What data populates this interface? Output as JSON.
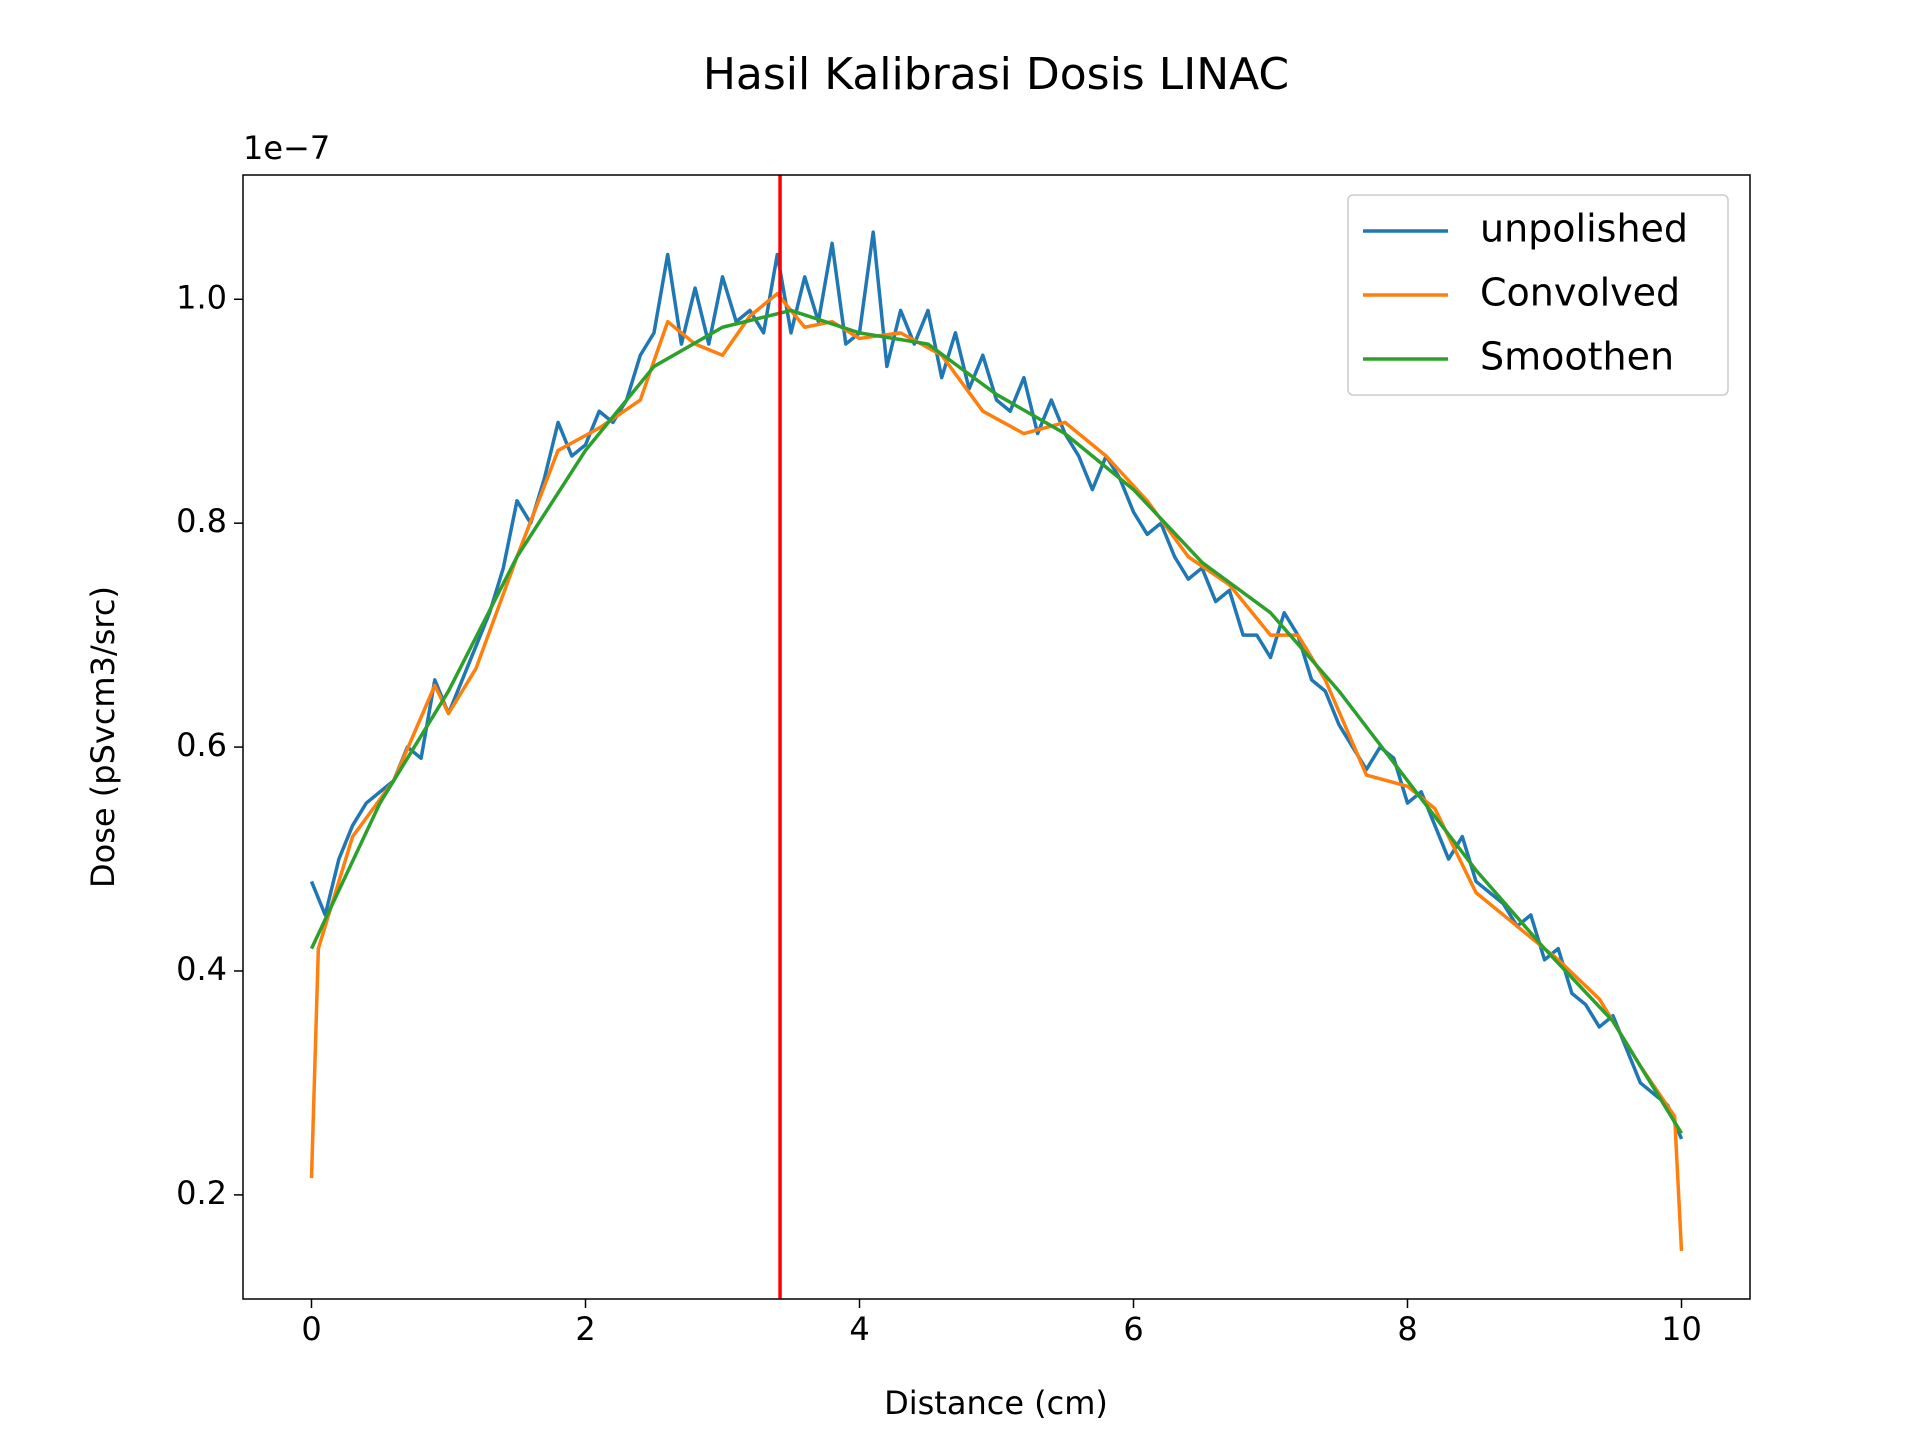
{
  "chart_data": {
    "type": "line",
    "title": "Hasil Kalibrasi Dosis LINAC",
    "x_label": "Distance (cm)",
    "y_label": "Dose (pSvcm3/src)",
    "y_offset_label": "1e−7",
    "xlim": [
      -0.5,
      10.5
    ],
    "ylim": [
      0.107,
      1.111
    ],
    "xticks": [
      0,
      2,
      4,
      6,
      8,
      10
    ],
    "yticks": [
      0.2,
      0.4,
      0.6,
      0.8,
      {
        "value": 1,
        "label": "1.0"
      }
    ],
    "legend": "upper right",
    "series": [
      {
        "name": "unpolished",
        "color": "#1f77b4",
        "x": [
          0,
          0.1,
          0.2,
          0.3,
          0.4,
          0.5,
          0.6,
          0.7,
          0.8,
          0.9,
          1,
          1.1,
          1.2,
          1.3,
          1.4,
          1.5,
          1.6,
          1.7,
          1.8,
          1.9,
          2,
          2.1,
          2.2,
          2.3,
          2.4,
          2.5,
          2.6,
          2.7,
          2.8,
          2.9,
          3,
          3.1,
          3.2,
          3.3,
          3.4,
          3.5,
          3.6,
          3.7,
          3.8,
          3.9,
          4,
          4.1,
          4.2,
          4.3,
          4.4,
          4.5,
          4.6,
          4.7,
          4.8,
          4.9,
          5,
          5.1,
          5.2,
          5.3,
          5.4,
          5.5,
          5.6,
          5.7,
          5.8,
          5.9,
          6,
          6.1,
          6.2,
          6.3,
          6.4,
          6.5,
          6.6,
          6.7,
          6.8,
          6.9,
          7,
          7.1,
          7.2,
          7.3,
          7.4,
          7.5,
          7.6,
          7.7,
          7.8,
          7.9,
          8,
          8.1,
          8.2,
          8.3,
          8.4,
          8.5,
          8.6,
          8.7,
          8.8,
          8.9,
          9,
          9.1,
          9.2,
          9.3,
          9.4,
          9.5,
          9.6,
          9.7,
          9.8,
          9.9,
          10
        ],
        "values": [
          0.48,
          0.45,
          0.5,
          0.53,
          0.55,
          0.56,
          0.57,
          0.6,
          0.59,
          0.66,
          0.63,
          0.66,
          0.69,
          0.72,
          0.76,
          0.82,
          0.8,
          0.84,
          0.89,
          0.86,
          0.87,
          0.9,
          0.89,
          0.91,
          0.95,
          0.97,
          1.04,
          0.96,
          1.01,
          0.96,
          1.02,
          0.98,
          0.99,
          0.97,
          1.04,
          0.97,
          1.02,
          0.98,
          1.05,
          0.96,
          0.97,
          1.06,
          0.94,
          0.99,
          0.96,
          0.99,
          0.93,
          0.97,
          0.92,
          0.95,
          0.91,
          0.9,
          0.93,
          0.88,
          0.91,
          0.88,
          0.86,
          0.83,
          0.86,
          0.84,
          0.81,
          0.79,
          0.8,
          0.77,
          0.75,
          0.76,
          0.73,
          0.74,
          0.7,
          0.7,
          0.68,
          0.72,
          0.7,
          0.66,
          0.65,
          0.62,
          0.6,
          0.58,
          0.6,
          0.59,
          0.55,
          0.56,
          0.53,
          0.5,
          0.52,
          0.48,
          0.47,
          0.46,
          0.44,
          0.45,
          0.41,
          0.42,
          0.38,
          0.37,
          0.35,
          0.36,
          0.33,
          0.3,
          0.29,
          0.28,
          0.25
        ]
      },
      {
        "name": "Convolved",
        "color": "#ff7f0e",
        "x": [
          0,
          0.05,
          0.3,
          0.6,
          0.9,
          1,
          1.2,
          1.5,
          1.8,
          2.1,
          2.4,
          2.6,
          2.8,
          3,
          3.2,
          3.4,
          3.6,
          3.8,
          4,
          4.3,
          4.6,
          4.9,
          5.2,
          5.5,
          5.8,
          6.1,
          6.4,
          6.7,
          7,
          7.2,
          7.4,
          7.7,
          8,
          8.2,
          8.5,
          8.8,
          9.1,
          9.4,
          9.7,
          9.95,
          10
        ],
        "values": [
          0.215,
          0.42,
          0.52,
          0.57,
          0.655,
          0.63,
          0.67,
          0.77,
          0.865,
          0.885,
          0.91,
          0.98,
          0.96,
          0.95,
          0.985,
          1.005,
          0.975,
          0.98,
          0.965,
          0.97,
          0.95,
          0.9,
          0.88,
          0.89,
          0.86,
          0.82,
          0.77,
          0.745,
          0.7,
          0.7,
          0.66,
          0.575,
          0.565,
          0.545,
          0.47,
          0.44,
          0.41,
          0.375,
          0.315,
          0.27,
          0.15
        ]
      },
      {
        "name": "Smoothen",
        "color": "#2ca02c",
        "x": [
          0,
          0.5,
          1,
          1.5,
          2,
          2.5,
          3,
          3.5,
          4,
          4.5,
          5,
          5.5,
          6,
          6.5,
          7,
          7.5,
          8,
          8.5,
          9,
          9.5,
          10
        ],
        "values": [
          0.42,
          0.55,
          0.65,
          0.77,
          0.865,
          0.94,
          0.975,
          0.99,
          0.97,
          0.96,
          0.915,
          0.88,
          0.83,
          0.765,
          0.72,
          0.65,
          0.57,
          0.49,
          0.42,
          0.355,
          0.255
        ]
      }
    ],
    "vline": {
      "x": 3.42,
      "color": "#ff0000"
    }
  }
}
